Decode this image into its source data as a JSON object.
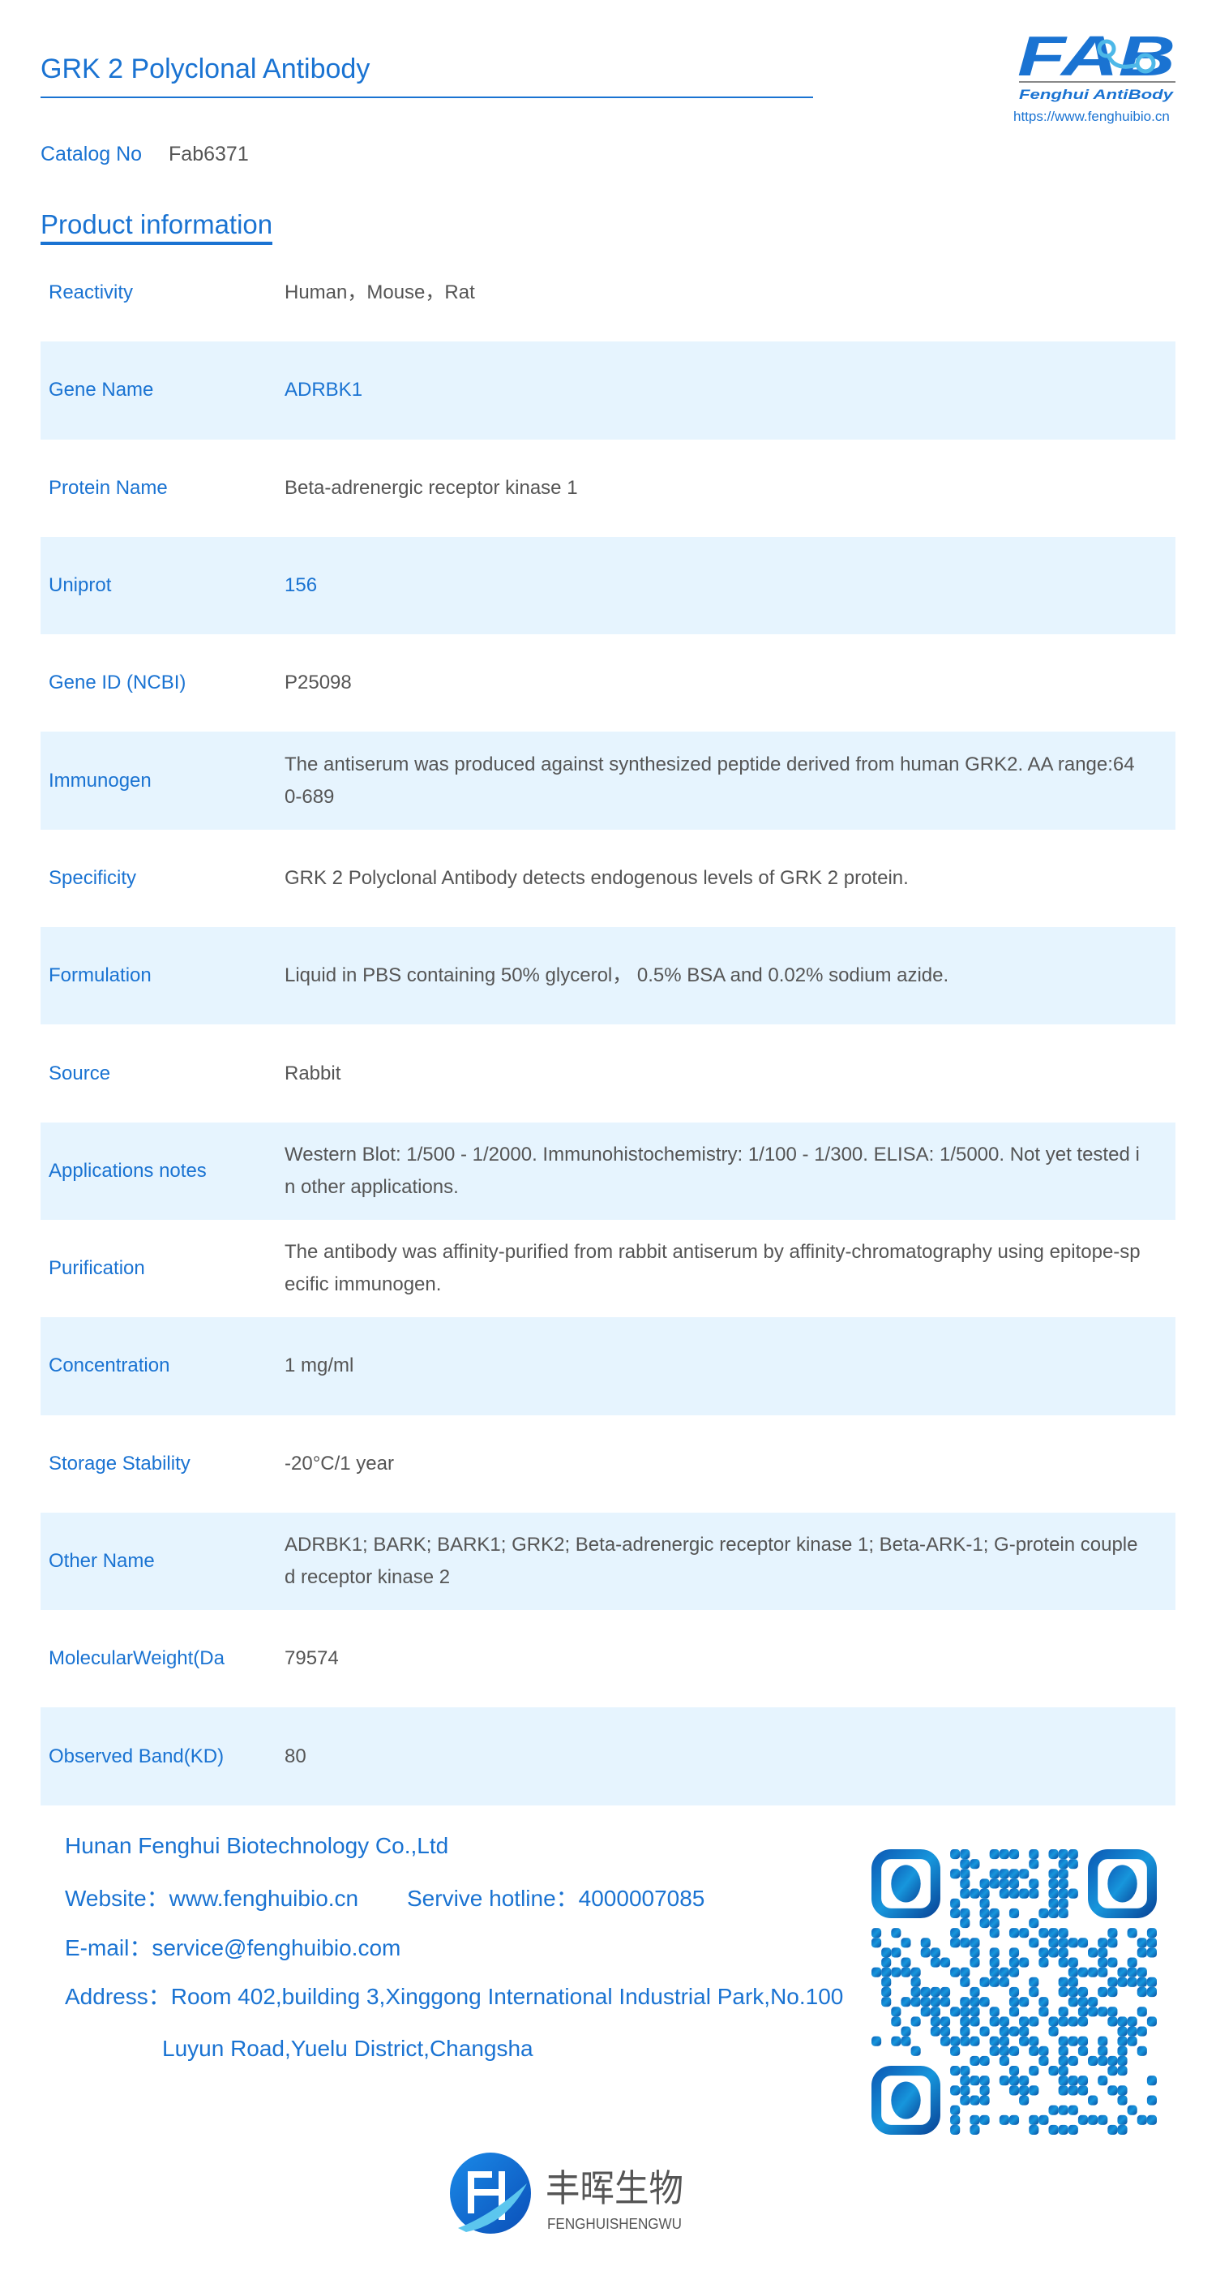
{
  "header": {
    "title": "GRK 2 Polyclonal Antibody",
    "logo_text": "FAB",
    "logo_tagline": "Fenghui AntiBody",
    "logo_url": "https://www.fenghuibio.cn"
  },
  "catalog": {
    "label": "Catalog No",
    "value": "Fab6371"
  },
  "section_title": "Product information",
  "rows": [
    {
      "label": "Reactivity",
      "value": "Human，Mouse，Rat"
    },
    {
      "label": "Gene Name",
      "value": "ADRBK1",
      "accent": true
    },
    {
      "label": "Protein Name",
      "value": "Beta-adrenergic receptor kinase 1"
    },
    {
      "label": "Uniprot",
      "value": "156",
      "accent": true
    },
    {
      "label": "Gene ID (NCBI)",
      "value": "P25098"
    },
    {
      "label": "Immunogen",
      "value": "The antiserum was produced against synthesized peptide derived from human GRK2. AA range:640-689"
    },
    {
      "label": "Specificity",
      "value": "GRK 2 Polyclonal Antibody detects endogenous levels of GRK 2 protein."
    },
    {
      "label": "Formulation",
      "value": "Liquid in PBS containing 50% glycerol， 0.5% BSA and 0.02% sodium azide."
    },
    {
      "label": "Source",
      "value": "Rabbit"
    },
    {
      "label": "Applications notes",
      "value": "Western Blot: 1/500 - 1/2000. Immunohistochemistry: 1/100 - 1/300. ELISA: 1/5000. Not yet tested in other applications."
    },
    {
      "label": "Purification",
      "value": "The antibody was affinity-purified from rabbit antiserum by affinity-chromatography using epitope-specific immunogen."
    },
    {
      "label": "Concentration",
      "value": "1 mg/ml"
    },
    {
      "label": "Storage Stability",
      "value": "-20°C/1 year"
    },
    {
      "label": "Other Name",
      "value": "ADRBK1; BARK; BARK1; GRK2; Beta-adrenergic receptor kinase 1; Beta-ARK-1; G-protein coupled receptor kinase 2"
    },
    {
      "label": "MolecularWeight(Da",
      "value": "79574"
    },
    {
      "label": "Observed Band(KD)",
      "value": "80"
    }
  ],
  "footer": {
    "company": "Hunan Fenghui Biotechnology Co.,Ltd",
    "website": "Website：www.fenghuibio.cn",
    "hotline": "Servive hotline：4000007085",
    "email": "E-mail：service@fenghuibio.com",
    "address_line1": "Address：Room 402,building 3,Xinggong International Industrial Park,No.100",
    "address_line2": "Luyun Road,Yuelu District,Changsha",
    "qr_icon": "qr-code",
    "brand_cn": "丰晖生物",
    "brand_pinyin": "FENGHUISHENGWU"
  },
  "colors": {
    "accent": "#1a73d2",
    "row_alt": "#e6f4fe",
    "value_text": "#555555",
    "logo_light": "#4db8e8"
  }
}
